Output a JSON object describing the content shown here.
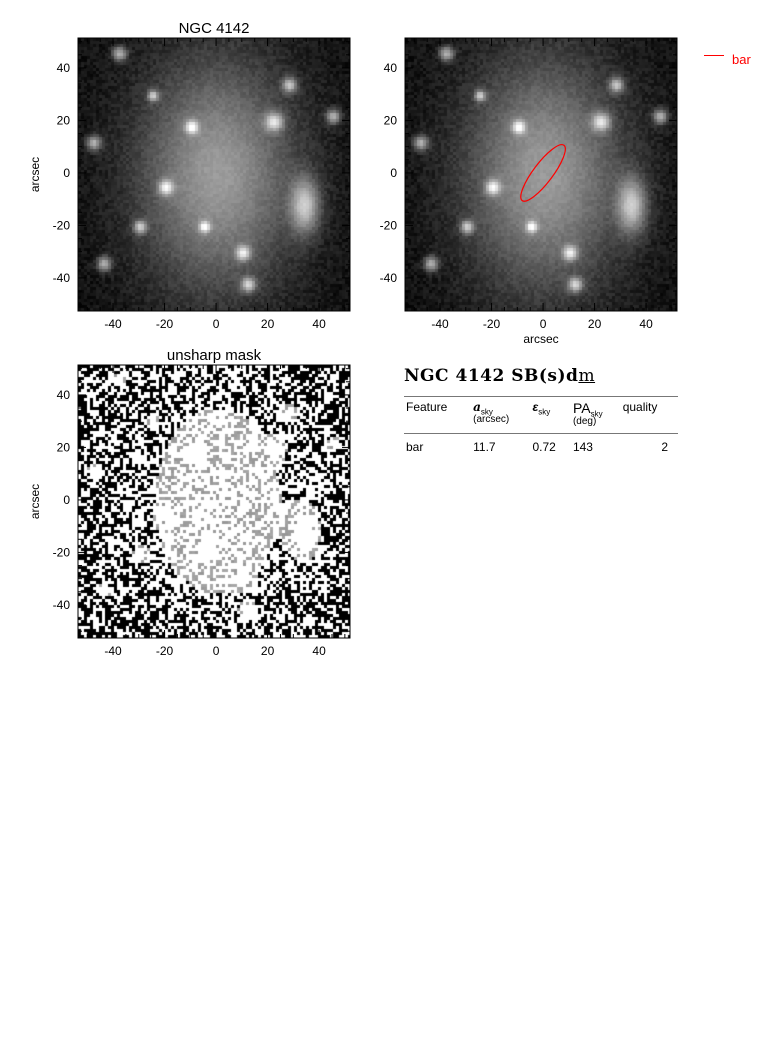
{
  "panels": [
    {
      "title": "NGC 4142",
      "xlabel": "",
      "ylabel": "arcsec",
      "type": "image"
    },
    {
      "title": "",
      "xlabel": "arcsec",
      "ylabel": "",
      "type": "image-with-ellipse"
    },
    {
      "title": "unsharp mask",
      "xlabel": "",
      "ylabel": "arcsec",
      "type": "unsharp-mask"
    }
  ],
  "axes": {
    "xlim": [
      -53.6,
      52
    ],
    "ylim": [
      -52.6,
      51.4
    ],
    "xticks": [
      -40,
      -20,
      0,
      20,
      40
    ],
    "yticks": [
      -40,
      -20,
      0,
      20,
      40
    ]
  },
  "legend": {
    "label": "bar",
    "color": "#ff0000"
  },
  "ellipse": {
    "feature": "bar",
    "a_arcsec": 11.7,
    "ellipticity": 0.72,
    "pa_deg": 143,
    "color": "#ff0000"
  },
  "table": {
    "title": "NGC 4142  SB(s)d",
    "title_suffix": "m",
    "headers": [
      {
        "main": "Feature",
        "sub": "",
        "unit": ""
      },
      {
        "main": "a",
        "sub": "sky",
        "unit": "(arcsec)"
      },
      {
        "main": "ε",
        "sub": "sky",
        "unit": ""
      },
      {
        "main": "PA",
        "sub": "sky",
        "unit": "(deg)"
      },
      {
        "main": "quality",
        "sub": "",
        "unit": ""
      }
    ],
    "rows": [
      [
        "bar",
        "11.7",
        "0.72",
        "143",
        "2"
      ]
    ]
  }
}
